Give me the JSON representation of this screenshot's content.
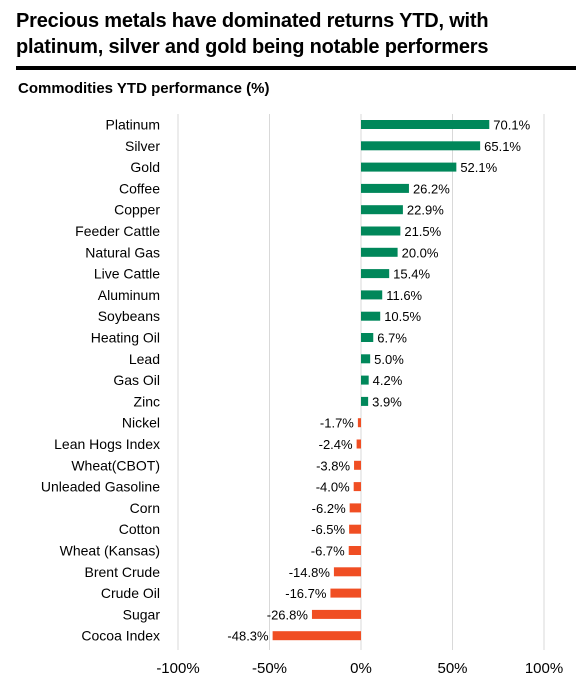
{
  "headline": "Precious metals have dominated returns YTD, with platinum, silver and gold being notable performers",
  "colors": {
    "positive": "#00875a",
    "negative": "#f04e23",
    "grid": "#d9d9d9"
  },
  "chart_data": {
    "type": "bar",
    "orientation": "horizontal",
    "title": "Commodities YTD performance (%)",
    "xlim": [
      -100,
      100
    ],
    "grid": true,
    "xticks": [
      -100,
      -50,
      0,
      50,
      100
    ],
    "xtick_labels": [
      "-100%",
      "-50%",
      "0%",
      "50%",
      "100%"
    ],
    "categories": [
      "Platinum",
      "Silver",
      "Gold",
      "Coffee",
      "Copper",
      "Feeder Cattle",
      "Natural Gas",
      "Live Cattle",
      "Aluminum",
      "Soybeans",
      "Heating Oil",
      "Lead",
      "Gas Oil",
      "Zinc",
      "Nickel",
      "Lean Hogs Index",
      "Wheat(CBOT)",
      "Unleaded Gasoline",
      "Corn",
      "Cotton",
      "Wheat (Kansas)",
      "Brent Crude",
      "Crude Oil",
      "Sugar",
      "Cocoa Index"
    ],
    "values": [
      70.1,
      65.1,
      52.1,
      26.2,
      22.9,
      21.5,
      20.0,
      15.4,
      11.6,
      10.5,
      6.7,
      5.0,
      4.2,
      3.9,
      -1.7,
      -2.4,
      -3.8,
      -4.0,
      -6.2,
      -6.5,
      -6.7,
      -14.8,
      -16.7,
      -26.8,
      -48.3
    ],
    "value_labels": [
      "70.1%",
      "65.1%",
      "52.1%",
      "26.2%",
      "22.9%",
      "21.5%",
      "20.0%",
      "15.4%",
      "11.6%",
      "10.5%",
      "6.7%",
      "5.0%",
      "4.2%",
      "3.9%",
      "-1.7%",
      "-2.4%",
      "-3.8%",
      "-4.0%",
      "-6.2%",
      "-6.5%",
      "-6.7%",
      "-14.8%",
      "-16.7%",
      "-26.8%",
      "-48.3%"
    ]
  }
}
